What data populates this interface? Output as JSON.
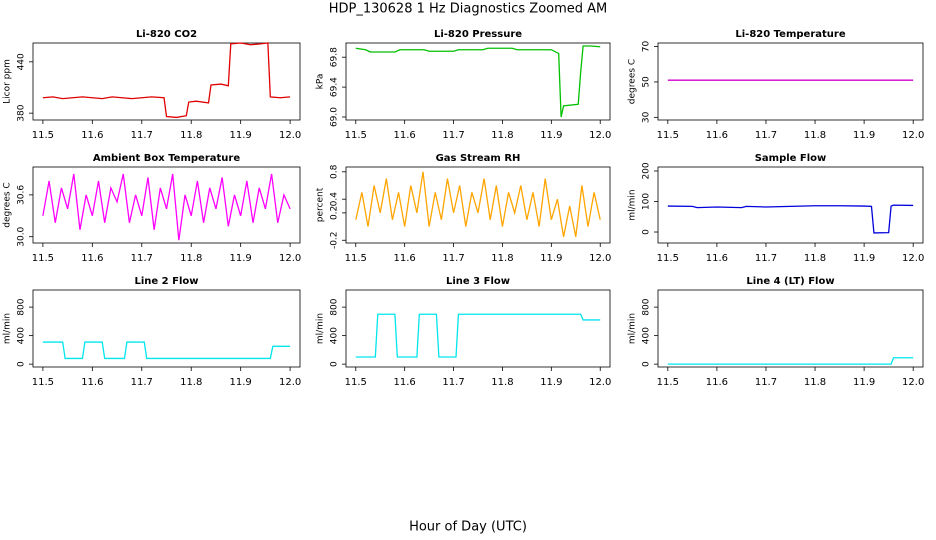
{
  "title": "HDP_130628  1 Hz Diagnostics Zoomed AM",
  "x_label": "Hour of Day (UTC)",
  "chart_data": [
    {
      "type": "line",
      "title": "Li-820 CO2",
      "y_label": "Licor ppm",
      "color": "#e00000",
      "x": [
        11.5,
        11.52,
        11.54,
        11.56,
        11.58,
        11.6,
        11.62,
        11.64,
        11.66,
        11.68,
        11.7,
        11.72,
        11.745,
        11.75,
        11.77,
        11.79,
        11.795,
        11.81,
        11.835,
        11.84,
        11.86,
        11.875,
        11.88,
        11.9,
        11.92,
        11.94,
        11.955,
        11.96,
        11.98,
        12.0
      ],
      "values": [
        398,
        399,
        397,
        398,
        399,
        398,
        397,
        399,
        398,
        397,
        398,
        399,
        398,
        376,
        375,
        377,
        393,
        394,
        392,
        413,
        414,
        412,
        461,
        462,
        460,
        461,
        462,
        399,
        398,
        399
      ],
      "xlim": [
        11.48,
        12.02
      ],
      "xticks": [
        11.5,
        11.6,
        11.7,
        11.8,
        11.9,
        {
          "value": 12,
          "label": "12.0"
        }
      ],
      "ylim": [
        372,
        462
      ],
      "yticks": [
        380,
        440
      ]
    },
    {
      "type": "line",
      "title": "Li-820 Pressure",
      "y_label": "kPa",
      "color": "#00c000",
      "x": [
        11.5,
        11.52,
        11.53,
        11.58,
        11.59,
        11.64,
        11.65,
        11.7,
        11.71,
        11.76,
        11.77,
        11.82,
        11.83,
        11.9,
        11.915,
        11.92,
        11.925,
        11.955,
        11.96,
        11.965,
        11.98,
        12.0
      ],
      "values": [
        69.92,
        69.9,
        69.87,
        69.87,
        69.9,
        69.9,
        69.88,
        69.88,
        69.9,
        69.9,
        69.92,
        69.92,
        69.9,
        69.9,
        69.85,
        69.0,
        69.15,
        69.17,
        69.6,
        69.95,
        69.95,
        69.94
      ],
      "xlim": [
        11.48,
        12.02
      ],
      "xticks": [
        11.5,
        11.6,
        11.7,
        11.8,
        11.9,
        {
          "value": 12,
          "label": "12.0"
        }
      ],
      "ylim": [
        68.96,
        69.99
      ],
      "yticks": [
        {
          "value": 69,
          "label": "69.0"
        },
        69.4,
        69.8
      ]
    },
    {
      "type": "line",
      "title": "Li-820 Temperature",
      "y_label": "degrees C",
      "color": "#cc00cc",
      "x": [
        11.5,
        12.0
      ],
      "values": [
        51,
        51
      ],
      "xlim": [
        11.48,
        12.02
      ],
      "xticks": [
        11.5,
        11.6,
        11.7,
        11.8,
        11.9,
        {
          "value": 12,
          "label": "12.0"
        }
      ],
      "ylim": [
        28.5,
        72
      ],
      "yticks": [
        30,
        50,
        70
      ]
    },
    {
      "type": "line",
      "title": "Ambient Box Temperature",
      "y_label": "degrees C",
      "color": "#ff00ff",
      "x": [
        11.5,
        11.5125,
        11.525,
        11.5375,
        11.55,
        11.5625,
        11.575,
        11.5875,
        11.6,
        11.6125,
        11.625,
        11.6375,
        11.65,
        11.6625,
        11.675,
        11.6875,
        11.7,
        11.7125,
        11.725,
        11.7375,
        11.75,
        11.7625,
        11.775,
        11.7875,
        11.8,
        11.8125,
        11.825,
        11.8375,
        11.85,
        11.8625,
        11.875,
        11.8875,
        11.9,
        11.9125,
        11.925,
        11.9375,
        11.95,
        11.9625,
        11.975,
        11.9875,
        12.0
      ],
      "values": [
        30.3,
        30.8,
        30.2,
        30.7,
        30.4,
        30.9,
        30.1,
        30.6,
        30.3,
        30.8,
        30.2,
        30.7,
        30.5,
        30.9,
        30.2,
        30.6,
        30.3,
        30.85,
        30.1,
        30.7,
        30.4,
        30.9,
        29.95,
        30.6,
        30.3,
        30.8,
        30.2,
        30.7,
        30.4,
        30.85,
        30.15,
        30.6,
        30.3,
        30.8,
        30.2,
        30.7,
        30.4,
        30.9,
        30.2,
        30.6,
        30.4
      ],
      "xlim": [
        11.48,
        12.02
      ],
      "xticks": [
        11.5,
        11.6,
        11.7,
        11.8,
        11.9,
        {
          "value": 12,
          "label": "12.0"
        }
      ],
      "ylim": [
        29.91,
        31.0
      ],
      "yticks": [
        {
          "value": 30,
          "label": "30.0"
        },
        30.6
      ]
    },
    {
      "type": "line",
      "title": "Gas Stream RH",
      "y_label": "percent",
      "color": "#ffa500",
      "x": [
        11.5,
        11.5125,
        11.525,
        11.5375,
        11.55,
        11.5625,
        11.575,
        11.5875,
        11.6,
        11.6125,
        11.625,
        11.6375,
        11.65,
        11.6625,
        11.675,
        11.6875,
        11.7,
        11.7125,
        11.725,
        11.7375,
        11.75,
        11.7625,
        11.775,
        11.7875,
        11.8,
        11.8125,
        11.825,
        11.8375,
        11.85,
        11.8625,
        11.875,
        11.8875,
        11.9,
        11.9125,
        11.925,
        11.9375,
        11.95,
        11.9625,
        11.975,
        11.9875,
        12.0
      ],
      "values": [
        0.1,
        0.5,
        0.0,
        0.6,
        0.2,
        0.7,
        0.1,
        0.5,
        0.0,
        0.6,
        0.2,
        0.8,
        0.0,
        0.5,
        0.1,
        0.7,
        0.2,
        0.6,
        0.0,
        0.5,
        0.2,
        0.7,
        0.1,
        0.6,
        0.0,
        0.5,
        0.2,
        0.6,
        0.1,
        0.5,
        0.0,
        0.7,
        0.1,
        0.4,
        -0.15,
        0.3,
        -0.15,
        0.6,
        0.0,
        0.5,
        0.1
      ],
      "xlim": [
        11.48,
        12.02
      ],
      "xticks": [
        11.5,
        11.6,
        11.7,
        11.8,
        11.9,
        {
          "value": 12,
          "label": "12.0"
        }
      ],
      "ylim": [
        -0.24,
        0.87
      ],
      "yticks": [
        -0.2,
        0.2,
        0.4,
        0.8
      ]
    },
    {
      "type": "line",
      "title": "Sample Flow",
      "y_label": "ml/min",
      "color": "#0000dd",
      "x": [
        11.5,
        11.55,
        11.56,
        11.6,
        11.65,
        11.66,
        11.7,
        11.75,
        11.8,
        11.85,
        11.9,
        11.915,
        11.92,
        11.95,
        11.955,
        11.96,
        12.0
      ],
      "values": [
        85,
        84,
        80,
        82,
        80,
        84,
        82,
        84,
        86,
        86,
        85,
        84,
        -3,
        -2,
        85,
        88,
        87
      ],
      "xlim": [
        11.48,
        12.02
      ],
      "xticks": [
        11.5,
        11.6,
        11.7,
        11.8,
        11.9,
        {
          "value": 12,
          "label": "12.0"
        }
      ],
      "ylim": [
        -36,
        213
      ],
      "yticks": [
        0,
        100,
        200
      ]
    },
    {
      "type": "line",
      "title": "Line 2 Flow",
      "y_label": "ml/min",
      "color": "#00e5ee",
      "x": [
        11.5,
        11.54,
        11.545,
        11.58,
        11.585,
        11.62,
        11.625,
        11.665,
        11.67,
        11.705,
        11.71,
        11.96,
        11.965,
        12.0
      ],
      "values": [
        310,
        310,
        80,
        80,
        310,
        310,
        80,
        80,
        310,
        310,
        80,
        80,
        250,
        250
      ],
      "xlim": [
        11.48,
        12.02
      ],
      "xticks": [
        11.5,
        11.6,
        11.7,
        11.8,
        11.9,
        {
          "value": 12,
          "label": "12.0"
        }
      ],
      "ylim": [
        -40,
        1040
      ],
      "yticks": [
        0,
        400,
        800
      ]
    },
    {
      "type": "line",
      "title": "Line 3 Flow",
      "y_label": "ml/min",
      "color": "#00e5ee",
      "x": [
        11.5,
        11.54,
        11.545,
        11.58,
        11.585,
        11.625,
        11.63,
        11.665,
        11.67,
        11.705,
        11.71,
        11.96,
        11.965,
        12.0
      ],
      "values": [
        100,
        100,
        700,
        700,
        100,
        100,
        700,
        700,
        100,
        100,
        700,
        700,
        620,
        620
      ],
      "xlim": [
        11.48,
        12.02
      ],
      "xticks": [
        11.5,
        11.6,
        11.7,
        11.8,
        11.9,
        {
          "value": 12,
          "label": "12.0"
        }
      ],
      "ylim": [
        -40,
        1040
      ],
      "yticks": [
        0,
        400,
        800
      ]
    },
    {
      "type": "line",
      "title": "Line 4 (LT) Flow",
      "y_label": "ml/min",
      "color": "#00e5ee",
      "x": [
        11.5,
        11.955,
        11.96,
        12.0
      ],
      "values": [
        0,
        0,
        90,
        90
      ],
      "xlim": [
        11.48,
        12.02
      ],
      "xticks": [
        11.5,
        11.6,
        11.7,
        11.8,
        11.9,
        {
          "value": 12,
          "label": "12.0"
        }
      ],
      "ylim": [
        -40,
        1040
      ],
      "yticks": [
        0,
        400,
        800
      ]
    }
  ]
}
